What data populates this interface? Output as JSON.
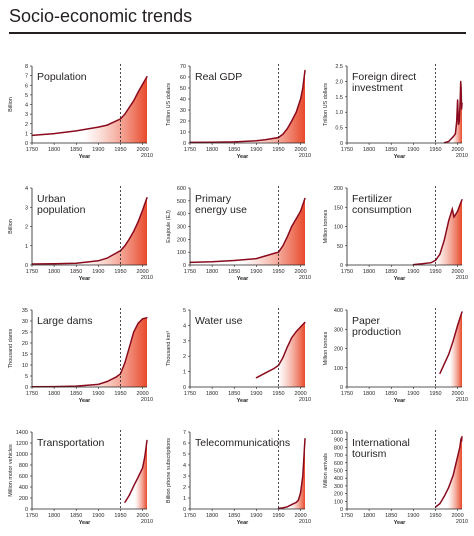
{
  "page": {
    "title": "Socio-economic trends"
  },
  "colors": {
    "line": "#8b0b1e",
    "fill_start": "#ffffff",
    "fill_end": "#e8492a",
    "axis": "#231f20",
    "marker": "#231f20"
  },
  "chart_data": [
    {
      "type": "area",
      "title": "Population",
      "ylabel": "Billion",
      "xlabel": "Year",
      "ylim": [
        0,
        8
      ],
      "yticks": [
        0,
        1,
        2,
        3,
        4,
        5,
        6,
        7,
        8
      ],
      "xticks": [
        1750,
        1800,
        1850,
        1900,
        1950,
        2000
      ],
      "xlim": [
        1750,
        2010
      ],
      "end_label": "2010",
      "marker_year": 1950,
      "x": [
        1750,
        1800,
        1850,
        1900,
        1920,
        1950,
        1960,
        1970,
        1980,
        1990,
        2000,
        2010
      ],
      "values": [
        0.79,
        0.98,
        1.26,
        1.65,
        1.86,
        2.5,
        3.0,
        3.7,
        4.4,
        5.3,
        6.1,
        6.9
      ]
    },
    {
      "type": "area",
      "title": "Real GDP",
      "ylabel": "Trillion US dollars",
      "xlabel": "Year",
      "ylim": [
        0,
        70
      ],
      "yticks": [
        0,
        10,
        20,
        30,
        40,
        50,
        60,
        70
      ],
      "xticks": [
        1750,
        1800,
        1850,
        1900,
        1950,
        2000
      ],
      "xlim": [
        1750,
        2010
      ],
      "end_label": "2010",
      "marker_year": 1950,
      "x": [
        1750,
        1800,
        1850,
        1900,
        1920,
        1950,
        1960,
        1970,
        1980,
        1990,
        2000,
        2005,
        2010
      ],
      "values": [
        0.5,
        0.7,
        1,
        2,
        3,
        5,
        8,
        13,
        20,
        28,
        40,
        50,
        66
      ]
    },
    {
      "type": "area",
      "title": "Foreign direct\ninvestment",
      "ylabel": "Trillion US dollars",
      "xlabel": "Year",
      "ylim": [
        0,
        2.5
      ],
      "yticks": [
        0,
        0.5,
        1,
        1.5,
        2,
        2.5
      ],
      "ytick_labels": [
        "0",
        "0.5",
        "1.0",
        "1.5",
        "2.0",
        "2.5"
      ],
      "xticks": [
        1750,
        1800,
        1850,
        1900,
        1950,
        2000
      ],
      "xlim": [
        1750,
        2010
      ],
      "end_label": "2010",
      "marker_year": 1950,
      "x": [
        1970,
        1980,
        1990,
        1995,
        1998,
        2000,
        2002,
        2004,
        2006,
        2007,
        2008,
        2009,
        2010
      ],
      "values": [
        0.01,
        0.05,
        0.2,
        0.3,
        0.7,
        1.4,
        0.6,
        0.7,
        1.4,
        2.0,
        1.8,
        1.1,
        1.3
      ]
    },
    {
      "type": "area",
      "title": "Urban\npopulation",
      "ylabel": "Billion",
      "xlabel": "Year",
      "ylim": [
        0,
        4
      ],
      "yticks": [
        0,
        1,
        2,
        3,
        4
      ],
      "xticks": [
        1750,
        1800,
        1850,
        1900,
        1950,
        2000
      ],
      "xlim": [
        1750,
        2010
      ],
      "end_label": "2010",
      "marker_year": 1950,
      "x": [
        1750,
        1800,
        1850,
        1900,
        1920,
        1950,
        1960,
        1970,
        1980,
        1990,
        2000,
        2010
      ],
      "values": [
        0.05,
        0.07,
        0.09,
        0.22,
        0.36,
        0.75,
        1.0,
        1.35,
        1.75,
        2.25,
        2.85,
        3.5
      ]
    },
    {
      "type": "area",
      "title": "Primary\nenergy use",
      "ylabel": "Exajoule (EJ)",
      "xlabel": "Year",
      "ylim": [
        0,
        600
      ],
      "yticks": [
        0,
        100,
        200,
        300,
        400,
        500,
        600
      ],
      "xticks": [
        1750,
        1800,
        1850,
        1900,
        1950,
        2000
      ],
      "xlim": [
        1750,
        2010
      ],
      "end_label": "2010",
      "marker_year": 1950,
      "x": [
        1750,
        1800,
        1850,
        1900,
        1920,
        1940,
        1950,
        1960,
        1970,
        1980,
        1990,
        2000,
        2010
      ],
      "values": [
        20,
        25,
        35,
        50,
        70,
        90,
        100,
        150,
        220,
        300,
        360,
        420,
        520
      ]
    },
    {
      "type": "area",
      "title": "Fertilizer\nconsumption",
      "ylabel": "Million tonnes",
      "xlabel": "Year",
      "ylim": [
        0,
        200
      ],
      "yticks": [
        0,
        50,
        100,
        150,
        200
      ],
      "xticks": [
        1750,
        1800,
        1850,
        1900,
        1950,
        2000
      ],
      "xlim": [
        1750,
        2010
      ],
      "end_label": "2010",
      "marker_year": 1950,
      "x": [
        1900,
        1920,
        1940,
        1950,
        1960,
        1970,
        1980,
        1988,
        1992,
        1995,
        2000,
        2005,
        2010
      ],
      "values": [
        1,
        3,
        6,
        12,
        28,
        65,
        115,
        145,
        125,
        130,
        140,
        155,
        170
      ]
    },
    {
      "type": "area",
      "title": "Large dams",
      "ylabel": "Thousand dams",
      "xlabel": "Year",
      "ylim": [
        0,
        35
      ],
      "yticks": [
        0,
        5,
        10,
        15,
        20,
        25,
        30,
        35
      ],
      "xticks": [
        1750,
        1800,
        1850,
        1900,
        1950,
        2000
      ],
      "xlim": [
        1750,
        2010
      ],
      "end_label": "2010",
      "marker_year": 1950,
      "x": [
        1750,
        1800,
        1850,
        1900,
        1920,
        1940,
        1950,
        1960,
        1970,
        1980,
        1990,
        2000,
        2010
      ],
      "values": [
        0.1,
        0.2,
        0.4,
        1.2,
        2.5,
        4.5,
        6,
        11,
        18,
        25,
        29,
        31,
        31.5
      ]
    },
    {
      "type": "area",
      "title": "Water use",
      "ylabel": "Thousand km³",
      "xlabel": "Year",
      "ylim": [
        0,
        5
      ],
      "yticks": [
        0,
        1,
        2,
        3,
        4,
        5
      ],
      "xticks": [
        1750,
        1800,
        1850,
        1900,
        1950,
        2000
      ],
      "xlim": [
        1750,
        2010
      ],
      "end_label": "2010",
      "marker_year": 1950,
      "x": [
        1900,
        1920,
        1940,
        1950,
        1960,
        1970,
        1980,
        1990,
        2000,
        2010
      ],
      "values": [
        0.6,
        0.9,
        1.2,
        1.4,
        1.9,
        2.6,
        3.2,
        3.6,
        3.9,
        4.2
      ]
    },
    {
      "type": "area",
      "title": "Paper\nproduction",
      "ylabel": "Million tonnes",
      "xlabel": "Year",
      "ylim": [
        0,
        400
      ],
      "yticks": [
        0,
        100,
        200,
        300,
        400
      ],
      "xticks": [
        1750,
        1800,
        1850,
        1900,
        1950,
        2000
      ],
      "xlim": [
        1750,
        2010
      ],
      "end_label": "2010",
      "marker_year": 1950,
      "x": [
        1960,
        1970,
        1980,
        1990,
        2000,
        2010
      ],
      "values": [
        70,
        120,
        170,
        240,
        320,
        390
      ]
    },
    {
      "type": "area",
      "title": "Transportation",
      "ylabel": "Million motor vehicles",
      "xlabel": "Year",
      "ylim": [
        0,
        1400
      ],
      "yticks": [
        0,
        200,
        400,
        600,
        800,
        1000,
        1200,
        1400
      ],
      "xticks": [
        1750,
        1800,
        1850,
        1900,
        1950,
        2000
      ],
      "xlim": [
        1750,
        2010
      ],
      "end_label": "2010",
      "marker_year": 1950,
      "x": [
        1960,
        1970,
        1980,
        1990,
        2000,
        2005,
        2010
      ],
      "values": [
        120,
        250,
        420,
        580,
        750,
        950,
        1250
      ]
    },
    {
      "type": "area",
      "title": "Telecommunications",
      "ylabel": "Billion phone subscriptions",
      "xlabel": "Year",
      "ylim": [
        0,
        7
      ],
      "yticks": [
        0,
        1,
        2,
        3,
        4,
        5,
        6,
        7
      ],
      "xticks": [
        1750,
        1800,
        1850,
        1900,
        1950,
        2000
      ],
      "xlim": [
        1750,
        2010
      ],
      "end_label": "2010",
      "marker_year": 1950,
      "x": [
        1950,
        1960,
        1970,
        1980,
        1990,
        1995,
        2000,
        2005,
        2008,
        2010
      ],
      "values": [
        0.05,
        0.1,
        0.2,
        0.4,
        0.6,
        0.8,
        1.5,
        3.0,
        5.0,
        6.4
      ]
    },
    {
      "type": "area",
      "title": "International\ntourism",
      "ylabel": "Million arrivals",
      "xlabel": "Year",
      "ylim": [
        0,
        1000
      ],
      "yticks": [
        0,
        100,
        200,
        300,
        400,
        500,
        600,
        700,
        800,
        900,
        1000
      ],
      "xticks": [
        1750,
        1800,
        1850,
        1900,
        1950,
        2000
      ],
      "xlim": [
        1750,
        2010
      ],
      "end_label": "2010",
      "marker_year": 1950,
      "x": [
        1950,
        1960,
        1970,
        1980,
        1990,
        2000,
        2005,
        2008,
        2009,
        2010
      ],
      "values": [
        25,
        70,
        165,
        280,
        440,
        680,
        800,
        920,
        880,
        940
      ]
    }
  ]
}
